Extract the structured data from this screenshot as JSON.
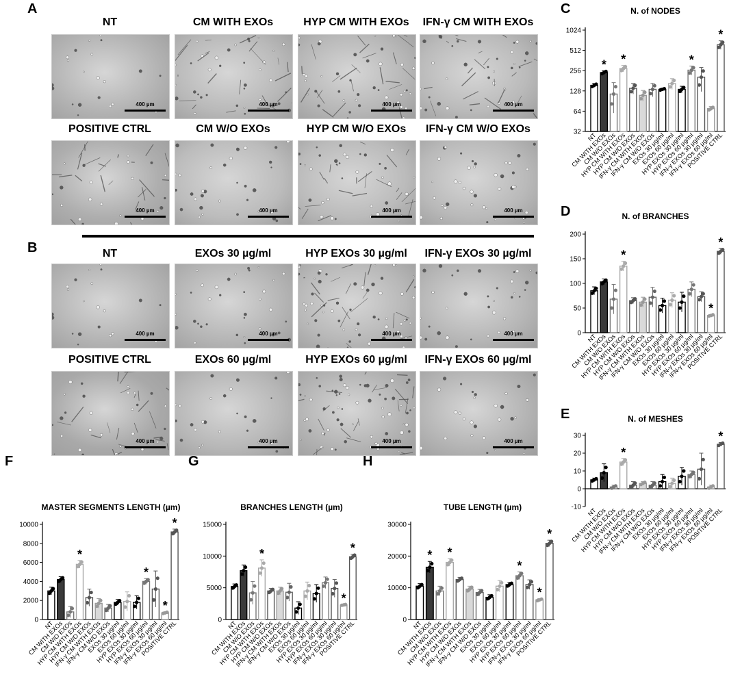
{
  "panels": {
    "A": "A",
    "B": "B",
    "C": "C",
    "D": "D",
    "E": "E",
    "F": "F",
    "G": "G",
    "H": "H"
  },
  "images_A": [
    {
      "title": "NT",
      "scale": "400 µm",
      "tone": "#b3b3b3",
      "density": 0.3,
      "network": false
    },
    {
      "title": "CM WITH EXOs",
      "scale": "400 µm",
      "tone": "#b9b9b9",
      "density": 0.5,
      "network": true
    },
    {
      "title": "HYP CM WITH EXOs",
      "scale": "400 µm",
      "tone": "#b7b7b7",
      "density": 0.6,
      "network": true
    },
    {
      "title": "IFN-γ CM WITH EXOs",
      "scale": "400 µm",
      "tone": "#bababa",
      "density": 0.5,
      "network": true
    },
    {
      "title": "POSITIVE CTRL",
      "scale": "400 µm",
      "tone": "#aeaeae",
      "density": 0.3,
      "network": true
    },
    {
      "title": "CM W/O EXOs",
      "scale": "400 µm",
      "tone": "#bcbcbc",
      "density": 0.5,
      "network": false
    },
    {
      "title": "HYP CM W/O EXOs",
      "scale": "400 µm",
      "tone": "#bbbbbb",
      "density": 0.5,
      "network": true
    },
    {
      "title": "IFN-γ CM W/O EXOs",
      "scale": "400 µm",
      "tone": "#b9b9b9",
      "density": 0.6,
      "network": false
    }
  ],
  "images_B": [
    {
      "title": "NT",
      "scale": "400 µm",
      "tone": "#b4b4b4",
      "density": 0.3,
      "network": false
    },
    {
      "title": "EXOs 30 µg/ml",
      "scale": "400 µm",
      "tone": "#b5b5b5",
      "density": 0.5,
      "network": false
    },
    {
      "title": "HYP EXOs 30 µg/ml",
      "scale": "400 µm",
      "tone": "#b8b8b8",
      "density": 0.8,
      "network": true
    },
    {
      "title": "IFN-γ EXOs 30 µg/ml",
      "scale": "400 µm",
      "tone": "#b6b6b6",
      "density": 0.5,
      "network": false
    },
    {
      "title": "POSITIVE CTRL",
      "scale": "400 µm",
      "tone": "#a9a9a9",
      "density": 0.4,
      "network": true
    },
    {
      "title": "EXOs 60 µg/ml",
      "scale": "400 µm",
      "tone": "#b7b7b7",
      "density": 0.4,
      "network": false
    },
    {
      "title": "HYP EXOs 60 µg/ml",
      "scale": "400 µm",
      "tone": "#b3b3b3",
      "density": 0.9,
      "network": true
    },
    {
      "title": "IFN-γ EXOs 60 µg/ml",
      "scale": "400 µm",
      "tone": "#b4b4b4",
      "density": 0.4,
      "network": false
    }
  ],
  "chart_data": [
    {
      "id": "C",
      "type": "bar",
      "title": "N. of NODES",
      "scale": "log2",
      "ylim": [
        32,
        1024
      ],
      "yticks": [
        32,
        64,
        128,
        256,
        512,
        1024
      ],
      "categories": [
        "NT",
        "CM WITH EXOs",
        "CM W/O EXOs",
        "HYP CM WITH EXOs",
        "HYP CM W/O EXOs",
        "IFN-γ CM WITH EXOs",
        "IFN-γ CM W/O EXOs",
        "EXOs 30 µg/ml",
        "EXOs 60 µg/ml",
        "HYP EXOs 30 µg/ml",
        "HYP EXOs 60 µg/ml",
        "IFN-γ EXOs 30 µg/ml",
        "IFN-γ EXOs 60 µg/ml",
        "POSITIVE CTRL"
      ],
      "values": [
        155,
        240,
        115,
        275,
        140,
        110,
        135,
        135,
        165,
        135,
        260,
        205,
        70,
        620
      ],
      "errors": [
        10,
        15,
        55,
        30,
        25,
        20,
        30,
        5,
        30,
        15,
        40,
        80,
        5,
        90
      ],
      "sig": [
        false,
        true,
        false,
        true,
        false,
        false,
        false,
        false,
        false,
        false,
        true,
        false,
        false,
        true
      ]
    },
    {
      "id": "D",
      "type": "bar",
      "title": "N. of BRANCHES",
      "scale": "linear",
      "ylim": [
        0,
        200
      ],
      "yticks": [
        0,
        50,
        100,
        150,
        200
      ],
      "categories": [
        "NT",
        "CM WITH EXOs",
        "CM W/O EXOs",
        "HYP CM WITH EXOs",
        "HYP CM W/O EXOs",
        "IFN-γ CM WITH EXOs",
        "IFN-γ CM W/O EXOs",
        "EXOs 30 µg/ml",
        "EXOs 60 µg/ml",
        "HYP EXOs 30 µg/ml",
        "HYP EXOs 60 µg/ml",
        "IFN-γ EXOs 30 µg/ml",
        "IFN-γ EXOs 60 µg/ml",
        "POSITIVE CTRL"
      ],
      "values": [
        85,
        103,
        68,
        135,
        65,
        62,
        72,
        55,
        66,
        62,
        88,
        73,
        35,
        165
      ],
      "errors": [
        8,
        6,
        30,
        10,
        6,
        10,
        20,
        15,
        15,
        20,
        15,
        10,
        2,
        6
      ],
      "sig": [
        false,
        false,
        false,
        true,
        false,
        false,
        false,
        false,
        false,
        false,
        false,
        false,
        true,
        true
      ]
    },
    {
      "id": "E",
      "type": "bar",
      "title": "N. of MESHES",
      "scale": "linear",
      "ylim": [
        -10,
        30
      ],
      "yticks": [
        -10,
        0,
        10,
        20,
        30
      ],
      "categories": [
        "NT",
        "CM WITH EXOs",
        "CM W/O EXOs",
        "HYP CM WITH EXOs",
        "HYP CM W/O EXOs",
        "IFN-γ CM WITH EXOs",
        "IFN-γ CM W/O EXOs",
        "EXOs 30 µg/ml",
        "EXOs 60 µg/ml",
        "HYP EXOs 30 µg/ml",
        "HYP EXOs 60 µg/ml",
        "IFN-γ EXOs 30 µg/ml",
        "IFN-γ EXOs 60 µg/ml",
        "POSITIVE CTRL"
      ],
      "values": [
        5,
        9,
        1,
        15,
        2,
        3,
        2,
        4,
        3,
        7,
        8,
        11,
        1,
        25
      ],
      "errors": [
        1,
        5,
        1,
        2,
        2,
        1,
        2,
        4,
        3,
        5,
        2,
        9,
        1,
        1
      ],
      "sig": [
        false,
        false,
        false,
        true,
        false,
        false,
        false,
        false,
        false,
        false,
        false,
        false,
        false,
        true
      ]
    },
    {
      "id": "F",
      "type": "bar",
      "title": "MASTER SEGMENTS LENGTH (µm)",
      "scale": "linear",
      "ylim": [
        0,
        10000
      ],
      "yticks": [
        0,
        2000,
        4000,
        6000,
        8000,
        10000
      ],
      "categories": [
        "NT",
        "CM WITH EXOs",
        "CM W/O EXOs",
        "HYP CM WITH EXOs",
        "HYP CM W/O EXOs",
        "IFN-γ CM WITH EXOs",
        "IFN-γ CM W/O EXOs",
        "EXOs 30 µg/ml",
        "EXOs 60 µg/ml",
        "HYP EXOs 30 µg/ml",
        "HYP EXOs 60 µg/ml",
        "IFN-γ EXOs 30 µg/ml",
        "IFN-γ EXOs 60 µg/ml",
        "POSITIVE CTRL"
      ],
      "values": [
        3000,
        4200,
        800,
        5800,
        2300,
        1700,
        1200,
        1800,
        1900,
        1800,
        4000,
        3200,
        700,
        9200
      ],
      "errors": [
        400,
        300,
        600,
        400,
        900,
        500,
        400,
        300,
        1000,
        700,
        300,
        1900,
        100,
        300
      ],
      "sig": [
        false,
        false,
        false,
        true,
        false,
        false,
        false,
        false,
        false,
        false,
        true,
        false,
        true,
        true
      ]
    },
    {
      "id": "G",
      "type": "bar",
      "title": "BRANCHES LENGTH (µm)",
      "scale": "linear",
      "ylim": [
        0,
        15000
      ],
      "yticks": [
        0,
        5000,
        10000,
        15000
      ],
      "categories": [
        "NT",
        "CM WITH EXOs",
        "CM W/O EXOs",
        "HYP CM WITH EXOs",
        "HYP CM W/O EXOs",
        "IFN-γ CM WITH EXOs",
        "IFN-γ CM W/O EXOs",
        "EXOs 30 µg/ml",
        "EXOs 60 µg/ml",
        "HYP EXOs 30 µg/ml",
        "HYP EXOs 60 µg/ml",
        "IFN-γ EXOs 30 µg/ml",
        "IFN-γ EXOs 60 µg/ml",
        "POSITIVE CTRL"
      ],
      "values": [
        5200,
        7700,
        4200,
        8100,
        4500,
        4500,
        4300,
        1800,
        4500,
        4100,
        5800,
        4900,
        2300,
        9900
      ],
      "errors": [
        400,
        900,
        1800,
        1300,
        400,
        600,
        1400,
        1000,
        1400,
        1400,
        900,
        1400,
        100,
        400
      ],
      "sig": [
        false,
        false,
        false,
        true,
        false,
        false,
        false,
        false,
        false,
        false,
        false,
        false,
        true,
        true
      ]
    },
    {
      "id": "H",
      "type": "bar",
      "title": "TUBE LENGTH (µm)",
      "scale": "linear",
      "ylim": [
        0,
        30000
      ],
      "yticks": [
        0,
        10000,
        20000,
        30000
      ],
      "categories": [
        "NT",
        "CM WITH EXOs",
        "CM W/O EXOs",
        "HYP CM WITH EXOs",
        "HYP CM W/O EXOs",
        "IFN-γ CM WITH EXOs",
        "IFN-γ CM W/O EXOs",
        "EXOs 30 µg/ml",
        "EXOs 60 µg/ml",
        "HYP EXOs 30 µg/ml",
        "HYP EXOs 60 µg/ml",
        "IFN-γ EXOs 30 µg/ml",
        "IFN-γ EXOs 60 µg/ml",
        "POSITIVE CTRL"
      ],
      "values": [
        10500,
        16500,
        9000,
        18000,
        12600,
        9600,
        8500,
        7000,
        10500,
        11000,
        13800,
        11000,
        6200,
        24000
      ],
      "errors": [
        800,
        1800,
        1500,
        1200,
        700,
        900,
        1000,
        800,
        1800,
        700,
        1200,
        1500,
        400,
        1000
      ],
      "sig": [
        false,
        true,
        false,
        true,
        false,
        false,
        false,
        false,
        false,
        false,
        true,
        false,
        true,
        true
      ]
    }
  ]
}
